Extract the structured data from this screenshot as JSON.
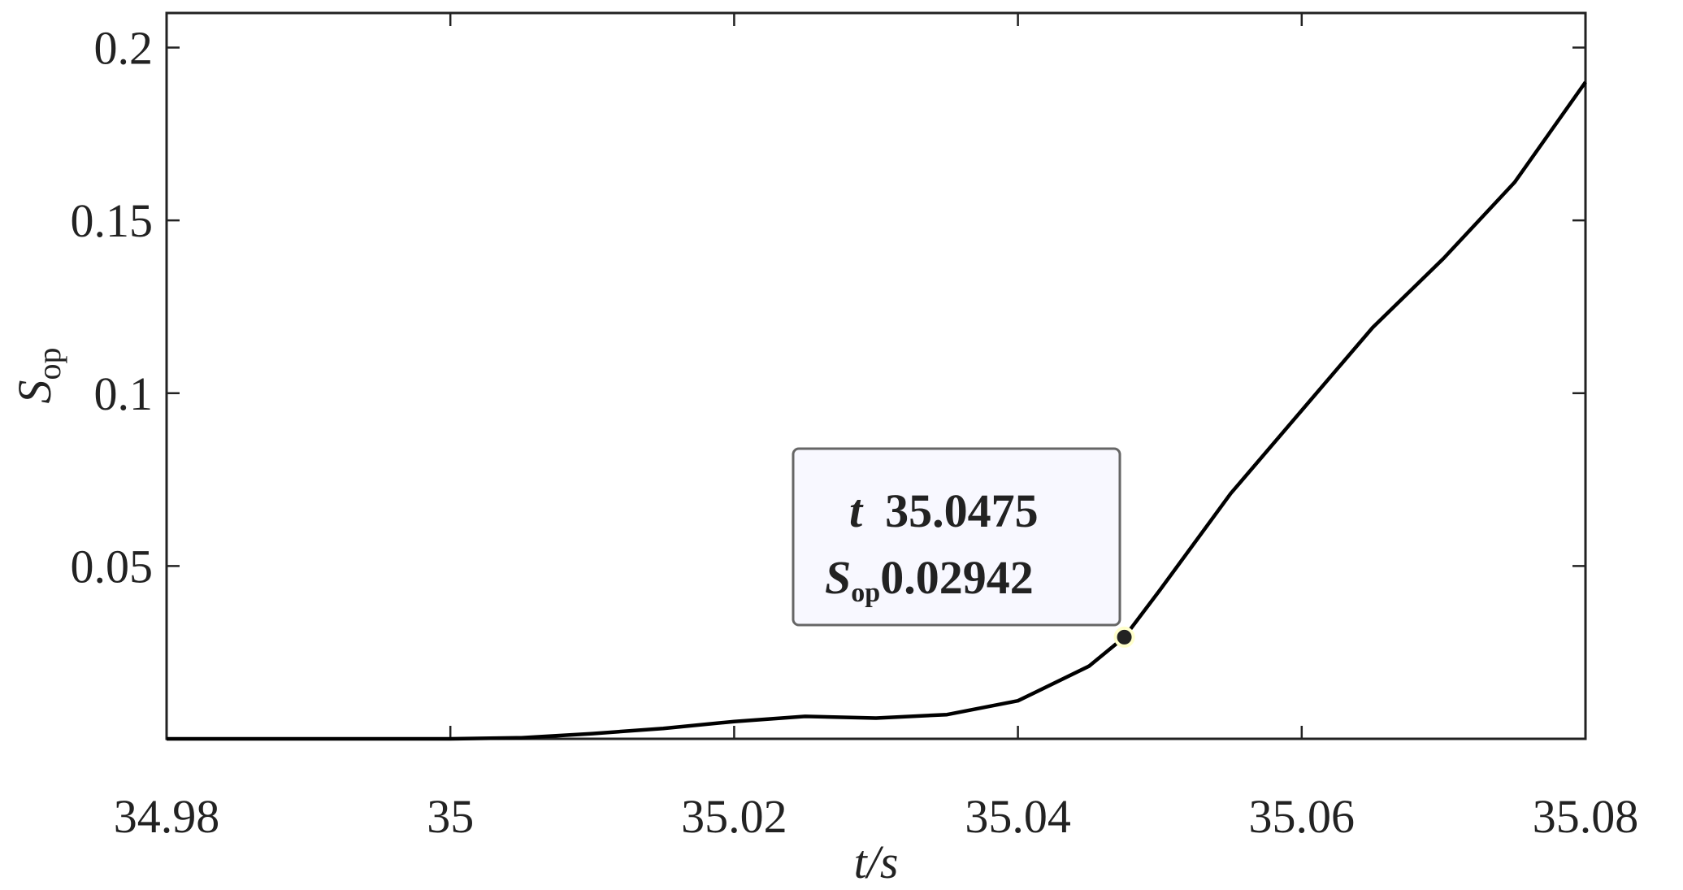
{
  "chart_data": {
    "type": "line",
    "x": [
      34.98,
      35.0,
      35.005,
      35.01,
      35.015,
      35.02,
      35.025,
      35.03,
      35.035,
      35.04,
      35.045,
      35.0475,
      35.05,
      35.055,
      35.06,
      35.065,
      35.07,
      35.075,
      35.08
    ],
    "values": [
      0,
      0,
      0.0003,
      0.0015,
      0.003,
      0.005,
      0.0065,
      0.006,
      0.007,
      0.011,
      0.021,
      0.02942,
      0.043,
      0.071,
      0.095,
      0.119,
      0.139,
      0.161,
      0.19
    ],
    "color": "#000000",
    "xlim": [
      34.98,
      35.08
    ],
    "xticks": [
      34.98,
      35,
      35.02,
      35.04,
      35.06,
      35.08
    ],
    "ylim": [
      0,
      0.21
    ],
    "yticks": [
      0.05,
      0.1,
      0.15,
      0.2
    ],
    "x_label": "t/s",
    "y_label": {
      "main": "S",
      "sub": "op"
    },
    "datatip": {
      "x_name": "t",
      "x": 35.0475,
      "y_name": {
        "main": "S",
        "sub": "op"
      },
      "y": 0.02942
    }
  }
}
